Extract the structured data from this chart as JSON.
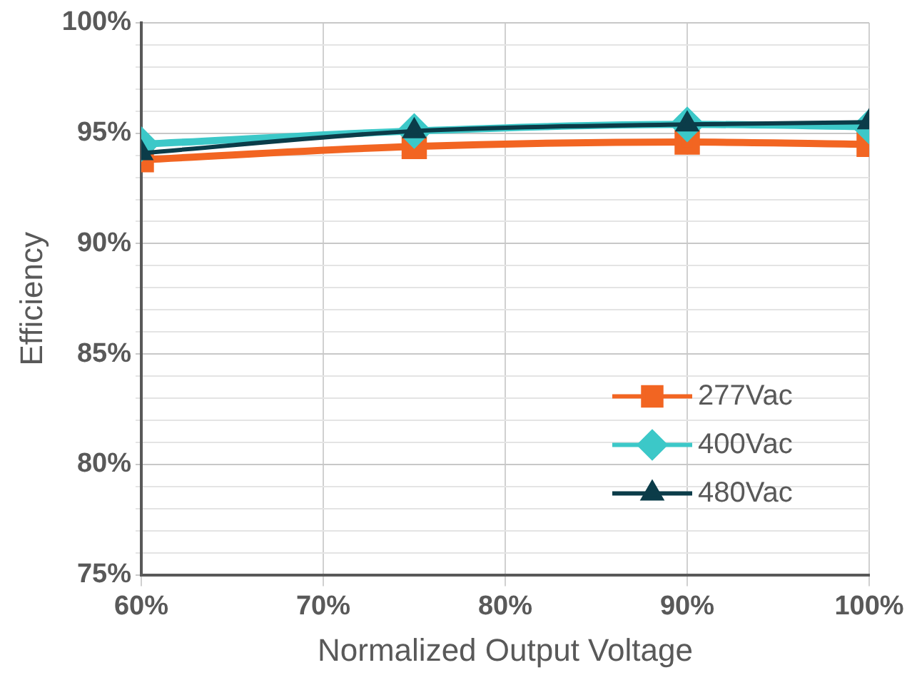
{
  "chart_data": {
    "type": "line",
    "xlabel": "Normalized Output Voltage",
    "ylabel": "Efficiency",
    "x": [
      60,
      75,
      90,
      100
    ],
    "xlim": [
      60,
      100
    ],
    "xticks": [
      {
        "value": 60,
        "label": "60%"
      },
      {
        "value": 70,
        "label": "70%"
      },
      {
        "value": 80,
        "label": "80%"
      },
      {
        "value": 90,
        "label": "90%"
      },
      {
        "value": 100,
        "label": "100%"
      }
    ],
    "ylim": [
      75,
      100
    ],
    "yticks": [
      {
        "value": 75,
        "label": "75%"
      },
      {
        "value": 76,
        "label": null
      },
      {
        "value": 77,
        "label": null
      },
      {
        "value": 78,
        "label": null
      },
      {
        "value": 79,
        "label": null
      },
      {
        "value": 80,
        "label": "80%"
      },
      {
        "value": 81,
        "label": null
      },
      {
        "value": 82,
        "label": null
      },
      {
        "value": 83,
        "label": null
      },
      {
        "value": 84,
        "label": null
      },
      {
        "value": 85,
        "label": "85%"
      },
      {
        "value": 86,
        "label": null
      },
      {
        "value": 87,
        "label": null
      },
      {
        "value": 88,
        "label": null
      },
      {
        "value": 89,
        "label": null
      },
      {
        "value": 90,
        "label": "90%"
      },
      {
        "value": 91,
        "label": null
      },
      {
        "value": 92,
        "label": null
      },
      {
        "value": 93,
        "label": null
      },
      {
        "value": 94,
        "label": null
      },
      {
        "value": 95,
        "label": "95%"
      },
      {
        "value": 96,
        "label": null
      },
      {
        "value": 97,
        "label": null
      },
      {
        "value": 98,
        "label": null
      },
      {
        "value": 99,
        "label": null
      },
      {
        "value": 100,
        "label": "100%"
      }
    ],
    "grid": true,
    "legend": "bottom right",
    "series": [
      {
        "name": "277Vac",
        "color": "#f26522",
        "marker": "square",
        "values": [
          93.8,
          94.4,
          94.6,
          94.5
        ]
      },
      {
        "name": "400Vac",
        "color": "#3cc8c8",
        "marker": "diamond",
        "values": [
          94.5,
          95.1,
          95.4,
          95.3
        ]
      },
      {
        "name": "480Vac",
        "color": "#0b3c49",
        "marker": "triangle",
        "values": [
          94.1,
          95.1,
          95.4,
          95.5
        ]
      }
    ]
  }
}
